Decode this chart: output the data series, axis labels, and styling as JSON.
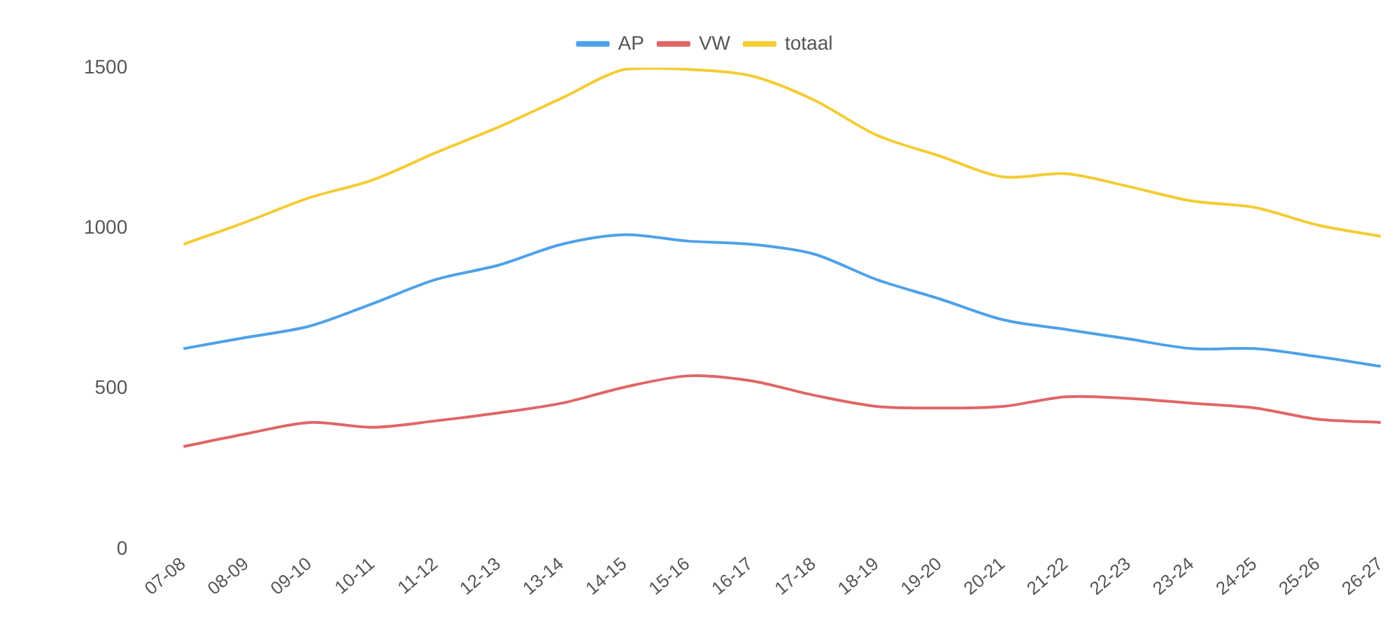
{
  "chart_data": {
    "type": "line",
    "categories": [
      "07-08",
      "08-09",
      "09-10",
      "10-11",
      "11-12",
      "12-13",
      "13-14",
      "14-15",
      "15-16",
      "16-17",
      "17-18",
      "18-19",
      "19-20",
      "20-21",
      "21-22",
      "22-23",
      "23-24",
      "24-25",
      "25-26",
      "26-27"
    ],
    "series": [
      {
        "name": "AP",
        "color": "#4ea1e8",
        "values": [
          625,
          660,
          695,
          765,
          840,
          885,
          950,
          980,
          960,
          950,
          920,
          840,
          780,
          715,
          685,
          655,
          625,
          625,
          600,
          570
        ]
      },
      {
        "name": "VW",
        "color": "#e06666",
        "values": [
          320,
          360,
          395,
          380,
          400,
          425,
          455,
          505,
          540,
          525,
          480,
          445,
          440,
          445,
          475,
          470,
          455,
          440,
          405,
          395
        ]
      },
      {
        "name": "totaal",
        "color": "#f4cc33",
        "values": [
          950,
          1020,
          1095,
          1150,
          1235,
          1315,
          1405,
          1495,
          1495,
          1475,
          1400,
          1290,
          1225,
          1160,
          1170,
          1130,
          1085,
          1065,
          1010,
          975
        ]
      }
    ],
    "ylim": [
      0,
      1500
    ],
    "yticks": [
      0,
      500,
      1000,
      1500
    ],
    "grid": false,
    "legend": "top",
    "marker": "none",
    "line_style": "solid"
  }
}
